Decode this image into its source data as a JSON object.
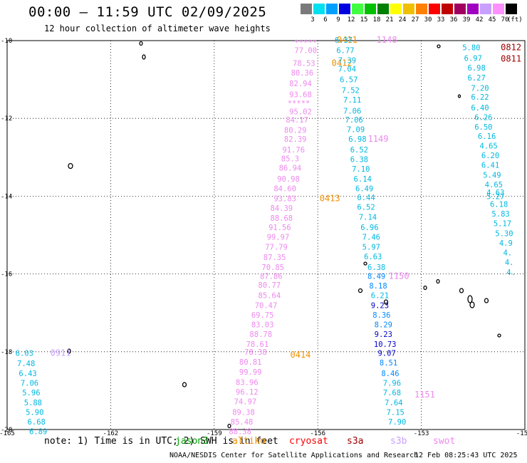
{
  "header": {
    "title": "00:00 – 11:59 UTC 02/09/2025",
    "subtitle": "12 hour collection of altimeter wave heights"
  },
  "color_scale": {
    "unit": "(ft)",
    "swatches": [
      {
        "label": "3",
        "color": "#7a7a7a"
      },
      {
        "label": "6",
        "color": "#00e0f0"
      },
      {
        "label": "9",
        "color": "#00a0ff"
      },
      {
        "label": "12",
        "color": "#0000e0"
      },
      {
        "label": "15",
        "color": "#40ff40"
      },
      {
        "label": "18",
        "color": "#00c000"
      },
      {
        "label": "21",
        "color": "#008000"
      },
      {
        "label": "24",
        "color": "#ffff00"
      },
      {
        "label": "27",
        "color": "#f0c000"
      },
      {
        "label": "30",
        "color": "#ff8000"
      },
      {
        "label": "33",
        "color": "#ff0000"
      },
      {
        "label": "36",
        "color": "#c00000"
      },
      {
        "label": "39",
        "color": "#a00060"
      },
      {
        "label": "42",
        "color": "#a000c0"
      },
      {
        "label": "45",
        "color": "#c8a0ff"
      },
      {
        "label": "70",
        "color": "#ff90ff"
      },
      {
        "label": "",
        "color": "#000000"
      }
    ]
  },
  "axes": {
    "lat_labels": [
      "-10",
      "-12",
      "-14",
      "-16",
      "-18",
      "-20"
    ],
    "lon_labels": [
      "-165",
      "-162",
      "-159",
      "-156",
      "-153",
      "-15"
    ]
  },
  "chart_data": {
    "type": "scatter",
    "xlabel": "",
    "ylabel": "",
    "xlim": [
      -165,
      -150
    ],
    "ylim": [
      -20,
      -10
    ],
    "grid": true,
    "passes": [
      {
        "satellite": "jason3",
        "color": "#ee88ee",
        "times": [
          {
            "label": "0411",
            "lon": -155.15,
            "lat": -9.98,
            "color": "#f09000"
          },
          {
            "label": "0412",
            "lon": -155.3,
            "lat": -10.58,
            "color": "#f09000"
          },
          {
            "label": "0413",
            "lon": -155.65,
            "lat": -14.06,
            "color": "#f09000"
          },
          {
            "label": "0414",
            "lon": -156.5,
            "lat": -18.08,
            "color": "#f09000"
          }
        ],
        "points": [
          {
            "lon": -156.35,
            "lat": -10.05,
            "v": "*****"
          },
          {
            "lon": -156.35,
            "lat": -10.25,
            "v": "77.00"
          },
          {
            "lon": -156.4,
            "lat": -10.58,
            "v": "78.53"
          },
          {
            "lon": -156.45,
            "lat": -10.82,
            "v": "80.36"
          },
          {
            "lon": -156.5,
            "lat": -11.1,
            "v": "82.94"
          },
          {
            "lon": -156.5,
            "lat": -11.38,
            "v": "93.68"
          },
          {
            "lon": -156.55,
            "lat": -11.6,
            "v": "*****"
          },
          {
            "lon": -156.5,
            "lat": -11.82,
            "v": "95.02"
          },
          {
            "lon": -156.6,
            "lat": -12.03,
            "v": "84.17"
          },
          {
            "lon": -156.65,
            "lat": -12.3,
            "v": "80.29"
          },
          {
            "lon": -156.65,
            "lat": -12.53,
            "v": "82.39"
          },
          {
            "lon": -156.7,
            "lat": -12.8,
            "v": "91.76"
          },
          {
            "lon": -156.8,
            "lat": -13.03,
            "v": "85.3"
          },
          {
            "lon": -156.8,
            "lat": -13.27,
            "v": "86.94"
          },
          {
            "lon": -156.85,
            "lat": -13.55,
            "v": "90.98"
          },
          {
            "lon": -156.95,
            "lat": -13.8,
            "v": "84.60"
          },
          {
            "lon": -156.95,
            "lat": -14.06,
            "v": "93.83"
          },
          {
            "lon": -157.05,
            "lat": -14.3,
            "v": "84.39"
          },
          {
            "lon": -157.05,
            "lat": -14.56,
            "v": "88.68"
          },
          {
            "lon": -157.1,
            "lat": -14.8,
            "v": "91.56"
          },
          {
            "lon": -157.15,
            "lat": -15.05,
            "v": "99.97"
          },
          {
            "lon": -157.2,
            "lat": -15.3,
            "v": "77.79"
          },
          {
            "lon": -157.25,
            "lat": -15.57,
            "v": "87.35"
          },
          {
            "lon": -157.3,
            "lat": -15.82,
            "v": "70.85"
          },
          {
            "lon": -157.35,
            "lat": -16.05,
            "v": "87.86"
          },
          {
            "lon": -157.4,
            "lat": -16.28,
            "v": "80.77"
          },
          {
            "lon": -157.4,
            "lat": -16.55,
            "v": "85.64"
          },
          {
            "lon": -157.5,
            "lat": -16.8,
            "v": "70.47"
          },
          {
            "lon": -157.6,
            "lat": -17.05,
            "v": "69.75"
          },
          {
            "lon": -157.6,
            "lat": -17.3,
            "v": "83.03"
          },
          {
            "lon": -157.65,
            "lat": -17.55,
            "v": "88.78"
          },
          {
            "lon": -157.75,
            "lat": -17.8,
            "v": "78.61"
          },
          {
            "lon": -157.8,
            "lat": -18.0,
            "v": "78.38"
          },
          {
            "lon": -157.95,
            "lat": -18.26,
            "v": "80.81"
          },
          {
            "lon": -157.95,
            "lat": -18.52,
            "v": "99.99"
          },
          {
            "lon": -158.05,
            "lat": -18.78,
            "v": "83.96"
          },
          {
            "lon": -158.05,
            "lat": -19.03,
            "v": "96.12"
          },
          {
            "lon": -158.1,
            "lat": -19.28,
            "v": "74.97"
          },
          {
            "lon": -158.15,
            "lat": -19.55,
            "v": "89.38"
          },
          {
            "lon": -158.2,
            "lat": -19.8,
            "v": "85.48"
          },
          {
            "lon": -158.25,
            "lat": -20.05,
            "v": "88.38"
          }
        ]
      },
      {
        "satellite": "cryosat",
        "color": "#00b8e0",
        "times": [
          {
            "label": "1148",
            "lon": -154.0,
            "lat": -9.98,
            "color": "#ee88ee"
          },
          {
            "lon": -154.25,
            "lat": -12.53,
            "label": "1149",
            "color": "#ee88ee"
          },
          {
            "lon": -153.65,
            "lat": -16.05,
            "label": "1150",
            "color": "#ee88ee"
          },
          {
            "lon": -152.9,
            "lat": -19.1,
            "label": "1151",
            "color": "#ee88ee"
          }
        ],
        "points": [
          {
            "lon": -155.25,
            "lat": -9.98,
            "v": "6.37"
          },
          {
            "lon": -155.2,
            "lat": -10.25,
            "v": "6.77"
          },
          {
            "lon": -155.15,
            "lat": -10.5,
            "v": "7.39"
          },
          {
            "lon": -155.15,
            "lat": -10.72,
            "v": "7.04"
          },
          {
            "lon": -155.1,
            "lat": -11.0,
            "v": "6.57"
          },
          {
            "lon": -155.05,
            "lat": -11.27,
            "v": "7.52"
          },
          {
            "lon": -155.0,
            "lat": -11.52,
            "v": "7.11"
          },
          {
            "lon": -155.0,
            "lat": -11.8,
            "v": "7.06"
          },
          {
            "lon": -154.95,
            "lat": -12.03,
            "v": "7.06"
          },
          {
            "lon": -154.9,
            "lat": -12.28,
            "v": "7.09"
          },
          {
            "lon": -154.85,
            "lat": -12.53,
            "v": "6.98"
          },
          {
            "lon": -154.8,
            "lat": -12.8,
            "v": "6.52"
          },
          {
            "lon": -154.8,
            "lat": -13.05,
            "v": "6.38"
          },
          {
            "lon": -154.75,
            "lat": -13.3,
            "v": "7.10"
          },
          {
            "lon": -154.7,
            "lat": -13.55,
            "v": "6.14"
          },
          {
            "lon": -154.65,
            "lat": -13.8,
            "v": "6.49"
          },
          {
            "lon": -154.6,
            "lat": -14.03,
            "v": "6.44"
          },
          {
            "lon": -154.6,
            "lat": -14.28,
            "v": "6.52"
          },
          {
            "lon": -154.55,
            "lat": -14.53,
            "v": "7.14"
          },
          {
            "lon": -154.5,
            "lat": -14.8,
            "v": "6.96"
          },
          {
            "lon": -154.45,
            "lat": -15.05,
            "v": "7.46"
          },
          {
            "lon": -154.45,
            "lat": -15.3,
            "v": "5.97"
          },
          {
            "lon": -154.4,
            "lat": -15.55,
            "v": "6.63"
          },
          {
            "lon": -154.3,
            "lat": -15.82,
            "v": "6.38"
          },
          {
            "lon": -154.3,
            "lat": -16.05,
            "v": "8.49",
            "color": "#0088ff"
          },
          {
            "lon": -154.25,
            "lat": -16.3,
            "v": "8.18",
            "color": "#0088ff"
          },
          {
            "lon": -154.2,
            "lat": -16.55,
            "v": "6.21"
          },
          {
            "lon": -154.2,
            "lat": -16.8,
            "v": "9.23",
            "color": "#0000c8"
          },
          {
            "lon": -154.15,
            "lat": -17.05,
            "v": "8.36",
            "color": "#0088ff"
          },
          {
            "lon": -154.1,
            "lat": -17.3,
            "v": "8.29",
            "color": "#0088ff"
          },
          {
            "lon": -154.1,
            "lat": -17.55,
            "v": "9.23",
            "color": "#0000c8"
          },
          {
            "lon": -154.05,
            "lat": -17.8,
            "v": "10.73",
            "color": "#0000c8"
          },
          {
            "lon": -154.0,
            "lat": -18.03,
            "v": "9.07",
            "color": "#0000c8"
          },
          {
            "lon": -153.95,
            "lat": -18.28,
            "v": "8.51",
            "color": "#0088ff"
          },
          {
            "lon": -153.9,
            "lat": -18.55,
            "v": "8.46",
            "color": "#0088ff"
          },
          {
            "lon": -153.85,
            "lat": -18.8,
            "v": "7.96"
          },
          {
            "lon": -153.85,
            "lat": -19.05,
            "v": "7.68"
          },
          {
            "lon": -153.8,
            "lat": -19.3,
            "v": "7.64"
          },
          {
            "lon": -153.75,
            "lat": -19.55,
            "v": "7.15"
          },
          {
            "lon": -153.7,
            "lat": -19.8,
            "v": "7.90"
          }
        ]
      },
      {
        "satellite": "east",
        "color": "#00b8e0",
        "times": [
          {
            "label": "0812",
            "lon": -150.4,
            "lat": -10.17,
            "color": "#a00000"
          },
          {
            "label": "0811",
            "lon": -150.4,
            "lat": -10.47,
            "color": "#a00000"
          }
        ],
        "points": [
          {
            "lon": -151.55,
            "lat": -10.17,
            "v": "5.80"
          },
          {
            "lon": -151.5,
            "lat": -10.45,
            "v": "6.97"
          },
          {
            "lon": -151.4,
            "lat": -10.7,
            "v": "6.98"
          },
          {
            "lon": -151.4,
            "lat": -10.95,
            "v": "6.27"
          },
          {
            "lon": -151.3,
            "lat": -11.22,
            "v": "7.20"
          },
          {
            "lon": -151.3,
            "lat": -11.45,
            "v": "6.22"
          },
          {
            "lon": -151.3,
            "lat": -11.72,
            "v": "6.40"
          },
          {
            "lon": -151.2,
            "lat": -11.97,
            "v": "6.26"
          },
          {
            "lon": -151.2,
            "lat": -12.22,
            "v": "6.50"
          },
          {
            "lon": -151.1,
            "lat": -12.45,
            "v": "6.16"
          },
          {
            "lon": -151.05,
            "lat": -12.7,
            "v": "4.65"
          },
          {
            "lon": -151.0,
            "lat": -12.95,
            "v": "6.20"
          },
          {
            "lon": -151.0,
            "lat": -13.2,
            "v": "6.41"
          },
          {
            "lon": -150.95,
            "lat": -13.45,
            "v": "5.49"
          },
          {
            "lon": -150.9,
            "lat": -13.7,
            "v": "4.65"
          },
          {
            "lon": -150.85,
            "lat": -13.9,
            "v": "4.63"
          },
          {
            "lon": -150.85,
            "lat": -14.0,
            "v": "5.27"
          },
          {
            "lon": -150.75,
            "lat": -14.2,
            "v": "6.18"
          },
          {
            "lon": -150.7,
            "lat": -14.45,
            "v": "5.83"
          },
          {
            "lon": -150.65,
            "lat": -14.7,
            "v": "5.17"
          },
          {
            "lon": -150.6,
            "lat": -14.95,
            "v": "5.30"
          },
          {
            "lon": -150.55,
            "lat": -15.2,
            "v": "4.9"
          },
          {
            "lon": -150.5,
            "lat": -15.45,
            "v": "4."
          },
          {
            "lon": -150.45,
            "lat": -15.7,
            "v": "4."
          },
          {
            "lon": -150.4,
            "lat": -15.95,
            "v": "4."
          }
        ]
      },
      {
        "satellite": "west",
        "color": "#00b8e0",
        "times": [
          {
            "label": "0911",
            "lon": -163.45,
            "lat": -18.03,
            "color": "#c8a0ff"
          }
        ],
        "points": [
          {
            "lon": -164.5,
            "lat": -18.03,
            "v": "6.03"
          },
          {
            "lon": -164.45,
            "lat": -18.3,
            "v": "7.48"
          },
          {
            "lon": -164.4,
            "lat": -18.55,
            "v": "6.43"
          },
          {
            "lon": -164.35,
            "lat": -18.8,
            "v": "7.06"
          },
          {
            "lon": -164.3,
            "lat": -19.05,
            "v": "5.96"
          },
          {
            "lon": -164.25,
            "lat": -19.3,
            "v": "5.88"
          },
          {
            "lon": -164.2,
            "lat": -19.55,
            "v": "5.90"
          },
          {
            "lon": -164.15,
            "lat": -19.8,
            "v": "6.68"
          },
          {
            "lon": -164.1,
            "lat": -20.05,
            "v": "6.89"
          }
        ]
      }
    ]
  },
  "footer": {
    "note": "note: 1) Time is in UTC; 2) SWH is in feet",
    "legend": [
      {
        "name": "jason3",
        "color": "#00a000"
      },
      {
        "name": "altiko",
        "color": "#f09000"
      },
      {
        "name": "cryosat",
        "color": "#ff0000"
      },
      {
        "name": "s3a",
        "color": "#a00000"
      },
      {
        "name": "s3b",
        "color": "#c8a0ff"
      },
      {
        "name": "swot",
        "color": "#ee88ee"
      }
    ],
    "agency": "NOAA/NESDIS Center for Satellite Applications and Research",
    "timestamp": "12 Feb 08:25:43 UTC 2025"
  }
}
